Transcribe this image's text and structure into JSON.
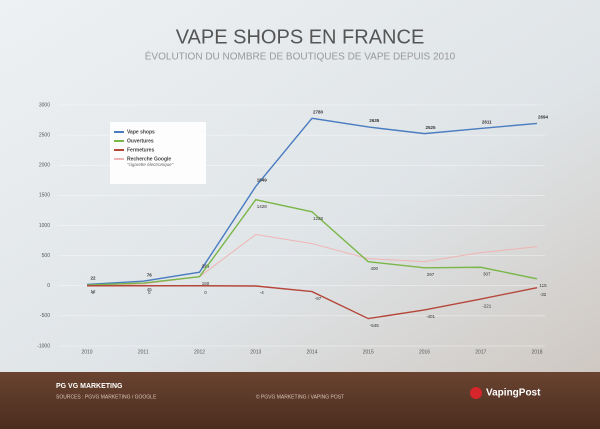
{
  "chart_data": {
    "type": "line",
    "title": "VAPE SHOPS EN FRANCE",
    "subtitle": "ÉVOLUTION DU NOMBRE DE BOUTIQUES DE VAPE DEPUIS 2010",
    "x": [
      2010,
      2011,
      2012,
      2013,
      2014,
      2015,
      2016,
      2017,
      2018
    ],
    "xlim": [
      2010,
      2018
    ],
    "xticks": [
      2010,
      2011,
      2012,
      2013,
      2014,
      2015,
      2016,
      2017,
      2018
    ],
    "ylim": [
      -1000,
      3000
    ],
    "yticks": [
      -1000,
      -500,
      0,
      500,
      1000,
      1500,
      2000,
      2500,
      3000
    ],
    "grid": true,
    "legend": "upper left",
    "series": [
      {
        "name": "Vape shops",
        "color": "#4a7cc0",
        "labels": true,
        "values": [
          22,
          76,
          225,
          1649,
          2780,
          2635,
          2525,
          2611,
          2694
        ]
      },
      {
        "name": "Ouvertures",
        "color": "#7ab648",
        "labels": true,
        "values": [
          12,
          45,
          150,
          1428,
          1228,
          400,
          297,
          307,
          115
        ]
      },
      {
        "name": "Fermetures",
        "color": "#b5473a",
        "labels": true,
        "values": [
          0,
          0,
          0,
          -4,
          -97,
          -545,
          -401,
          -221,
          -32
        ]
      },
      {
        "name": "Recherche Google",
        "subtitle": "\"cigarette électronique\"",
        "color": "#f0b4b4",
        "labels": false,
        "values": [
          0,
          30,
          150,
          850,
          700,
          450,
          400,
          550,
          650
        ]
      }
    ]
  },
  "footer": {
    "brand": "PG VG MARKETING",
    "sources": "SOURCES : PGVG MARKETING / GOOGLE",
    "copyright": "© PGVG MARKETING / VAPING POST",
    "logo": "VapingPost"
  }
}
